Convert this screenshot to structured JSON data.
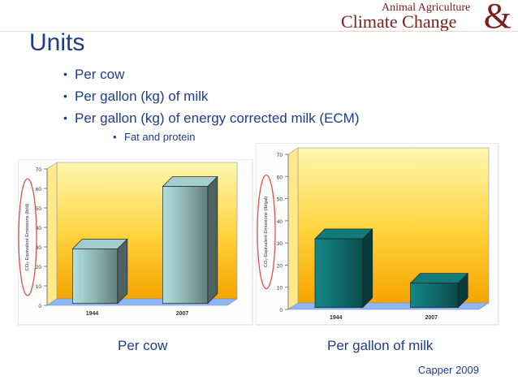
{
  "header": {
    "logo_line1": "Animal Agriculture",
    "logo_line2": "Climate Change",
    "logo_amp": "&"
  },
  "title": "Units",
  "bullets": [
    "Per cow",
    "Per gallon (kg) of milk",
    "Per gallon (kg) of energy corrected milk (ECM)"
  ],
  "sub_bullet": "Fat and protein",
  "chart_data": [
    {
      "type": "bar",
      "categories": [
        "1944",
        "2007"
      ],
      "values": [
        28,
        60
      ],
      "ylabel": "CO₂-Equivalent Emissions (lb/d)",
      "ylim": [
        0,
        70
      ],
      "yticks": [
        0,
        10,
        20,
        30,
        40,
        50,
        60,
        70
      ],
      "bar_color": "#8fb3b3",
      "caption": "Per cow"
    },
    {
      "type": "bar",
      "categories": [
        "1944",
        "2007"
      ],
      "values": [
        31,
        11
      ],
      "ylabel": "CO₂-Equivalent Emissions (lb/gal)",
      "ylim": [
        0,
        70
      ],
      "yticks": [
        0,
        10,
        20,
        30,
        40,
        50,
        60,
        70
      ],
      "bar_color": "#0f6b6b",
      "caption": "Per gallon of milk"
    }
  ],
  "citation": "Capper 2009"
}
